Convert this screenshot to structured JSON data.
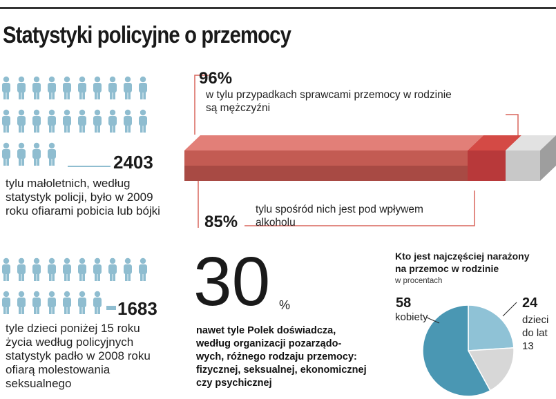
{
  "title": "Statystyki policyjne o przemocy",
  "stat1": {
    "number": "2403",
    "text": [
      "tylu małoletnich, według",
      "statystyk policji, było w 2009",
      "roku ofiarami pobicia lub bójki"
    ]
  },
  "stat2": {
    "number": "1683",
    "text": [
      "tyle dzieci poniżej 15 roku",
      "życia według policyjnych",
      "statystyk padło w 2008 roku",
      "ofiarą molestowania",
      "seksualnego"
    ]
  },
  "bar": {
    "top_pct": "96%",
    "top_text": [
      "w tylu przypadkach sprawcami przemocy w rodzinie",
      "są mężczyźni"
    ],
    "bottom_pct": "85%",
    "bottom_text": [
      "tylu spośród nich jest pod wpływem",
      "alkoholu"
    ]
  },
  "stat30": {
    "number": "30",
    "unit": "%",
    "text": [
      "nawet tyle Polek doświadcza,",
      "według organizacji pozarządo-",
      "wych, różnego rodzaju przemocy:",
      "fizycznej, seksualnej, ekonomicznej",
      "czy psychicznej"
    ]
  },
  "pie": {
    "title": [
      "Kto jest najczęściej narażony",
      "na przemoc w rodzinie"
    ],
    "subtitle": "w procentach",
    "left_value": "58",
    "left_label": "kobiety",
    "right_value": "24",
    "right_label": [
      "dzieci",
      "do lat",
      "13"
    ]
  },
  "chart_data": [
    {
      "type": "bar",
      "title": "",
      "categories": [
        "mężczyźni sprawcami",
        "pod wpływem alkoholu"
      ],
      "values": [
        96,
        85
      ],
      "colors": [
        "#c9483f",
        "#a84f47"
      ]
    },
    {
      "type": "pie",
      "title": "Kto jest najczęściej narażony na przemoc w rodzinie",
      "subtitle": "w procentach",
      "categories": [
        "kobiety",
        "dzieci do lat 13",
        ""
      ],
      "values": [
        58,
        24,
        18
      ],
      "colors": [
        "#4a97b3",
        "#8fc2d6",
        "#d7d7d7"
      ]
    }
  ],
  "icons": {
    "person_color": "#8fbdd0"
  }
}
